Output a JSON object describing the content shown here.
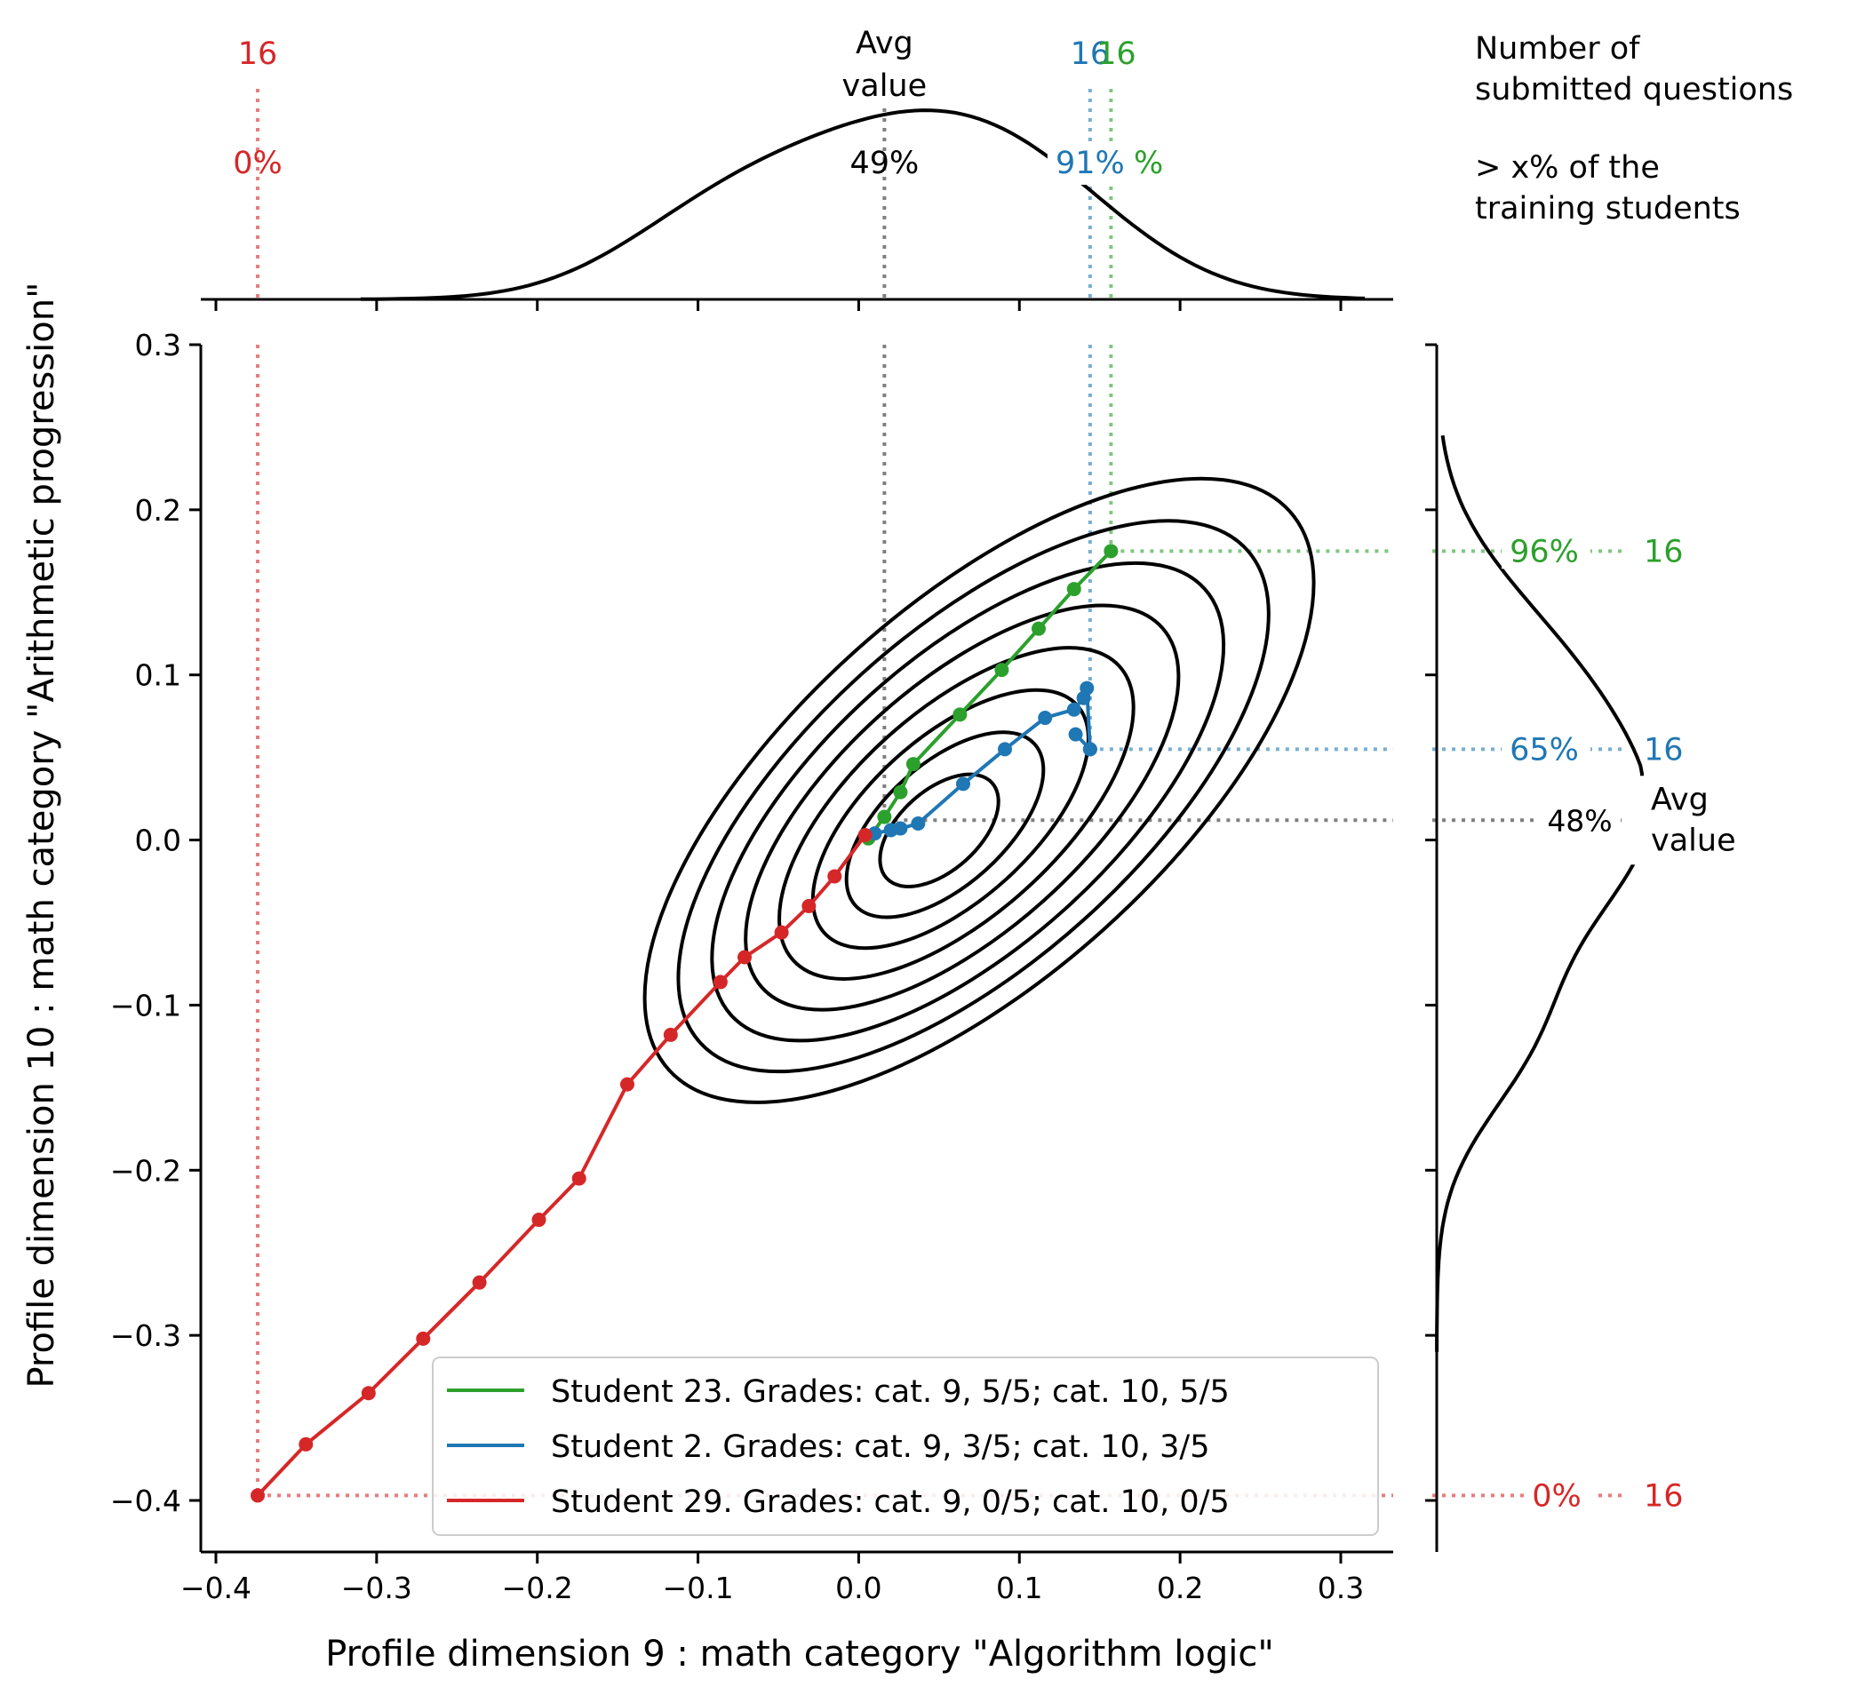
{
  "chart_data": {
    "type": "scatter",
    "xlabel": "Profile dimension 9 : math category \"Algorithm logic\"",
    "ylabel": "Profile dimension 10 : math category \"Arithmetic progression\"",
    "xlim": [
      -0.41,
      0.335
    ],
    "ylim": [
      -0.43,
      0.31
    ],
    "xticks": [
      -0.4,
      -0.3,
      -0.2,
      -0.1,
      0.0,
      0.1,
      0.2,
      0.3
    ],
    "yticks": [
      -0.4,
      -0.3,
      -0.2,
      -0.1,
      0.0,
      0.1,
      0.2,
      0.3
    ],
    "xtick_labels": [
      "−0.4",
      "−0.3",
      "−0.2",
      "−0.1",
      "0.0",
      "0.1",
      "0.2",
      "0.3"
    ],
    "ytick_labels": [
      "−0.4",
      "−0.3",
      "−0.2",
      "−0.1",
      "0.0",
      "0.1",
      "0.2",
      "0.3"
    ],
    "grid": false,
    "legend_position": "lower-right",
    "series": [
      {
        "name": "Student 23. Grades: cat. 9, 5/5; cat. 10, 5/5",
        "color": "#2ca02c",
        "x": [
          0.006,
          0.016,
          0.026,
          0.034,
          0.063,
          0.089,
          0.112,
          0.134,
          0.157
        ],
        "y": [
          0.001,
          0.014,
          0.029,
          0.046,
          0.076,
          0.103,
          0.128,
          0.152,
          0.175
        ],
        "avg_percent": "91%",
        "x_percentile": "91%",
        "y_percentile": "96%",
        "questions": "16"
      },
      {
        "name": "Student 2. Grades: cat. 9, 3/5; cat. 10, 3/5",
        "color": "#1f77b4",
        "x": [
          0.01,
          0.02,
          0.026,
          0.037,
          0.065,
          0.091,
          0.116,
          0.134,
          0.14,
          0.142,
          0.144,
          0.135,
          0.144
        ],
        "y": [
          0.004,
          0.006,
          0.007,
          0.01,
          0.034,
          0.055,
          0.074,
          0.079,
          0.086,
          0.092,
          0.055,
          0.064,
          0.055
        ],
        "x_percentile": "91%",
        "y_percentile": "65%",
        "questions": "16"
      },
      {
        "name": "Student 29. Grades: cat. 9, 0/5; cat. 10, 0/5",
        "color": "#d62728",
        "x": [
          0.004,
          -0.015,
          -0.031,
          -0.048,
          -0.071,
          -0.086,
          -0.117,
          -0.144,
          -0.174,
          -0.199,
          -0.236,
          -0.271,
          -0.305,
          -0.344,
          -0.374
        ],
        "y": [
          0.003,
          -0.022,
          -0.04,
          -0.056,
          -0.071,
          -0.086,
          -0.118,
          -0.148,
          -0.205,
          -0.23,
          -0.268,
          -0.302,
          -0.335,
          -0.366,
          -0.397
        ],
        "x_percentile": "0%",
        "y_percentile": "0%",
        "questions": "16"
      }
    ],
    "average": {
      "x": 0.016,
      "y": 0.012,
      "x_percent": "49%",
      "y_percent": "48%",
      "label_line1": "Avg",
      "label_line2": "value"
    },
    "density_contour_levels": 8
  },
  "annotations": {
    "info_line1": "Number of",
    "info_line2": "submitted questions",
    "info_line3": "> x% of the",
    "info_line4": "training students"
  }
}
